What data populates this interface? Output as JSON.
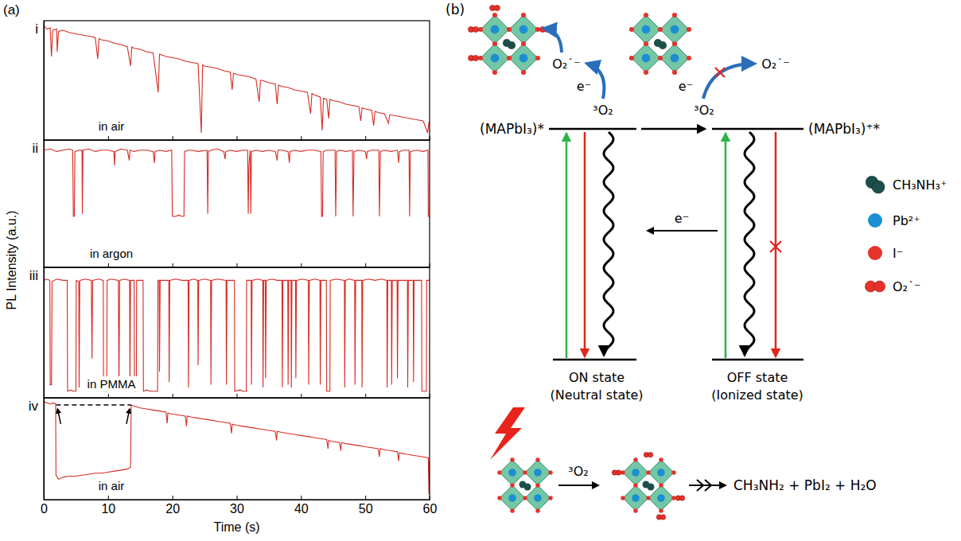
{
  "chart_data": [
    {
      "type": "line",
      "title": "i",
      "annotation": "in air",
      "color": "#d62b24",
      "x": [
        0,
        0.5,
        1,
        1.2,
        1.4,
        2,
        2.1,
        2.3,
        3,
        4,
        5,
        6,
        7,
        8,
        8.4,
        8.6,
        9,
        10,
        11,
        12,
        13,
        13.5,
        13.7,
        14,
        15,
        16,
        17,
        17.8,
        18,
        19,
        20,
        21,
        22,
        23,
        24,
        24.5,
        24.7,
        25,
        26,
        27,
        28,
        29,
        29.3,
        29.5,
        30,
        31,
        32,
        33,
        33.5,
        33.7,
        34,
        35,
        36,
        36.3,
        36.5,
        37,
        38,
        39,
        40,
        41,
        41.5,
        41.7,
        42,
        43,
        43.3,
        43.5,
        44,
        44.3,
        44.5,
        45,
        46,
        47,
        48,
        49,
        49.3,
        49.5,
        50,
        51,
        51.3,
        51.5,
        52,
        53,
        53.6,
        53.8,
        54,
        55,
        56,
        57,
        58,
        59,
        59.7,
        59.9,
        60
      ],
      "values": [
        96,
        93,
        94,
        70,
        92,
        93,
        74,
        91,
        92,
        90,
        89,
        88,
        87,
        86,
        68,
        85,
        84,
        83,
        81,
        80,
        78,
        62,
        78,
        77,
        76,
        74,
        73,
        40,
        72,
        70,
        69,
        68,
        66,
        65,
        64,
        6,
        63,
        62,
        61,
        60,
        58,
        57,
        42,
        56,
        55,
        54,
        53,
        51,
        32,
        50,
        50,
        48,
        47,
        30,
        46,
        45,
        44,
        42,
        41,
        40,
        22,
        39,
        38,
        36,
        8,
        35,
        34,
        18,
        34,
        33,
        32,
        30,
        29,
        28,
        16,
        27,
        26,
        25,
        12,
        24,
        23,
        22,
        14,
        21,
        21,
        20,
        19,
        18,
        17,
        16,
        6,
        15,
        15
      ],
      "xlim": [
        0,
        60
      ],
      "ylim": [
        0,
        100
      ],
      "xticks": [
        0,
        10,
        20,
        30,
        40,
        50,
        60
      ],
      "yticks": [],
      "tick_labels": false
    },
    {
      "type": "line",
      "title": "ii",
      "annotation": "in argon",
      "color": "#d62b24",
      "x": [
        0,
        1,
        2,
        3,
        4,
        4.5,
        4.6,
        4.75,
        4.85,
        5.5,
        5.95,
        6.0,
        6.1,
        7,
        8,
        9,
        10,
        10.9,
        11.0,
        11.1,
        12,
        13,
        13.3,
        13.4,
        14,
        15,
        16,
        17,
        17.2,
        17.3,
        18,
        19,
        19.9,
        20.0,
        20.5,
        21,
        21.5,
        21.8,
        21.9,
        22.5,
        23,
        24,
        25.4,
        25.5,
        25.6,
        26,
        27,
        28,
        28.2,
        28.3,
        29,
        30,
        31,
        31.7,
        31.8,
        31.9,
        32.1,
        32.2,
        32.3,
        33,
        34,
        35,
        36,
        36.3,
        36.4,
        37,
        38,
        38.2,
        38.3,
        39,
        40,
        41,
        42,
        43.1,
        43.2,
        43.35,
        43.45,
        44,
        45.3,
        45.4,
        45.55,
        46,
        47,
        48.0,
        48.1,
        48.25,
        49,
        50,
        50.2,
        50.3,
        51,
        52.1,
        52.2,
        52.35,
        53,
        54,
        55,
        55.2,
        55.3,
        56,
        56.8,
        56.9,
        57.0,
        58,
        59,
        59.75,
        59.8,
        59.9,
        60
      ],
      "values": [
        92,
        93,
        91,
        92,
        93,
        92,
        40,
        40,
        91,
        92,
        92,
        42,
        92,
        93,
        91,
        92,
        92,
        91,
        80,
        91,
        93,
        92,
        84,
        92,
        91,
        92,
        92,
        91,
        82,
        91,
        92,
        91,
        92,
        40,
        40,
        41,
        40,
        40,
        91,
        92,
        92,
        91,
        92,
        42,
        91,
        92,
        93,
        91,
        85,
        91,
        92,
        91,
        92,
        92,
        42,
        80,
        92,
        42,
        91,
        92,
        91,
        92,
        91,
        84,
        92,
        92,
        91,
        82,
        91,
        92,
        91,
        92,
        92,
        91,
        40,
        40,
        91,
        92,
        92,
        40,
        91,
        92,
        91,
        92,
        40,
        91,
        92,
        91,
        85,
        91,
        92,
        92,
        40,
        91,
        92,
        91,
        92,
        82,
        91,
        92,
        92,
        40,
        91,
        92,
        91,
        92,
        40,
        40,
        40
      ],
      "xlim": [
        0,
        60
      ],
      "ylim": [
        0,
        100
      ],
      "xticks": [
        0,
        10,
        20,
        30,
        40,
        50,
        60
      ],
      "yticks": [],
      "tick_labels": false
    },
    {
      "type": "line",
      "title": "iii",
      "annotation": "in PMMA",
      "color": "#d62b24",
      "x": [
        0,
        0.5,
        0.95,
        1.0,
        1.2,
        1.3,
        2,
        3,
        3.65,
        3.7,
        4.2,
        4.6,
        5.0,
        5.05,
        5.45,
        5.5,
        5.6,
        6.5,
        7.4,
        7.5,
        7.6,
        8.5,
        9.25,
        9.3,
        9.8,
        9.85,
        10.5,
        11.6,
        11.7,
        11.8,
        12.5,
        13.35,
        13.4,
        13.5,
        14.05,
        14.1,
        14.4,
        14.45,
        15.45,
        15.5,
        16,
        16.5,
        17,
        17.7,
        17.75,
        17.95,
        18.0,
        18.1,
        19.45,
        19.5,
        19.6,
        20.5,
        21.5,
        22.45,
        22.5,
        22.6,
        23.3,
        23.95,
        24.0,
        24.1,
        25,
        25.95,
        26.0,
        26.1,
        27,
        28.35,
        28.4,
        28.5,
        29.65,
        29.7,
        30.5,
        31,
        31.5,
        31.55,
        32.25,
        32.3,
        32.4,
        33.3,
        34.05,
        34.1,
        34.2,
        34.45,
        34.5,
        34.6,
        35.5,
        36.3,
        37.05,
        37.1,
        37.2,
        37.95,
        38.0,
        38.1,
        38.45,
        38.5,
        38.6,
        39.15,
        39.2,
        39.3,
        40.2,
        41.15,
        41.2,
        41.3,
        42.2,
        42.95,
        43.0,
        43.1,
        43.95,
        44.0,
        44.5,
        44.55,
        45.5,
        46.75,
        46.8,
        46.9,
        47.5,
        48.35,
        48.4,
        48.5,
        49.45,
        49.5,
        49.6,
        50.5,
        51.5,
        52.5,
        53.35,
        53.4,
        53.5,
        54.05,
        54.1,
        54.2,
        54.95,
        55.0,
        55.1,
        56.55,
        56.6,
        56.7,
        57.45,
        57.5,
        57.6,
        58.75,
        58.8,
        59.5,
        59.55,
        60
      ],
      "values": [
        90,
        91,
        90,
        10,
        10,
        89,
        91,
        90,
        90,
        5,
        6,
        5,
        5,
        90,
        89,
        8,
        90,
        91,
        90,
        30,
        90,
        91,
        90,
        5,
        5,
        90,
        91,
        90,
        8,
        90,
        91,
        90,
        6,
        90,
        90,
        5,
        5,
        90,
        90,
        5,
        6,
        5,
        5,
        5,
        90,
        90,
        20,
        90,
        90,
        12,
        90,
        91,
        90,
        90,
        8,
        90,
        91,
        90,
        25,
        90,
        91,
        90,
        10,
        90,
        91,
        90,
        10,
        90,
        90,
        5,
        6,
        5,
        5,
        90,
        90,
        10,
        90,
        91,
        90,
        8,
        90,
        90,
        15,
        90,
        91,
        90,
        90,
        8,
        90,
        90,
        10,
        90,
        90,
        8,
        90,
        90,
        15,
        90,
        91,
        90,
        10,
        90,
        91,
        90,
        10,
        90,
        90,
        5,
        5,
        90,
        91,
        90,
        8,
        90,
        91,
        90,
        10,
        90,
        90,
        8,
        90,
        91,
        90,
        91,
        90,
        8,
        90,
        90,
        10,
        90,
        90,
        15,
        90,
        90,
        8,
        90,
        90,
        12,
        90,
        90,
        5,
        5,
        90,
        90
      ],
      "xlim": [
        0,
        60
      ],
      "ylim": [
        0,
        100
      ],
      "xticks": [
        0,
        10,
        20,
        30,
        40,
        50,
        60
      ],
      "yticks": [],
      "tick_labels": false
    },
    {
      "type": "line",
      "title": "iv",
      "annotation": "in air",
      "xlabel": "Time (s)",
      "color": "#d62b24",
      "x": [
        0,
        0.5,
        1,
        1.5,
        1.85,
        1.9,
        2.3,
        3,
        4,
        5,
        6,
        7,
        8,
        9,
        10,
        11,
        12,
        13,
        13.5,
        13.6,
        14,
        15,
        16,
        17,
        18,
        19,
        19.2,
        19.3,
        20,
        21,
        22,
        22.2,
        22.3,
        23,
        24,
        25,
        26,
        27,
        28,
        29,
        29.2,
        29.3,
        30,
        31,
        32,
        33,
        34,
        35,
        36,
        36.2,
        36.3,
        37,
        38,
        39,
        40,
        41,
        42,
        43,
        44,
        44.2,
        44.3,
        45,
        46,
        46.2,
        46.3,
        47,
        48,
        49,
        50,
        51,
        52,
        52.2,
        52.3,
        53,
        54,
        55,
        55.2,
        55.3,
        56,
        57,
        58,
        59,
        59.8,
        59.9,
        60
      ],
      "values": [
        96,
        95,
        94,
        95,
        94,
        24,
        20,
        22,
        23,
        23,
        24,
        25,
        26,
        26,
        27,
        28,
        29,
        30,
        32,
        93,
        92,
        90,
        89,
        88,
        87,
        86,
        75,
        85,
        84,
        83,
        82,
        72,
        82,
        81,
        80,
        79,
        78,
        77,
        76,
        75,
        65,
        74,
        73,
        72,
        71,
        70,
        69,
        68,
        67,
        58,
        67,
        66,
        65,
        64,
        63,
        62,
        61,
        60,
        59,
        50,
        58,
        57,
        56,
        48,
        56,
        55,
        54,
        53,
        52,
        51,
        50,
        42,
        50,
        49,
        48,
        47,
        38,
        46,
        45,
        44,
        43,
        42,
        41,
        5,
        38
      ],
      "reference_line": {
        "x": [
          1.9,
          13.6
        ],
        "y": 93
      },
      "xlim": [
        0,
        60
      ],
      "ylim": [
        0,
        100
      ],
      "xticks": [
        0,
        10,
        20,
        30,
        40,
        50,
        60
      ],
      "yticks": [],
      "tick_labels": "x"
    }
  ],
  "panel_a": {
    "label": "(a)",
    "ylabel": "PL Intensity (a.u.)"
  },
  "diagram": {
    "label": "(b)",
    "neutral": {
      "superoxide": "O₂˙⁻",
      "electron": "e⁻",
      "oxygen": "³O₂",
      "excited": "(MAPbI₃)*",
      "state": "ON state",
      "state_note": "(Neutral state)"
    },
    "ionized": {
      "superoxide": "O₂˙⁻",
      "electron": "e⁻",
      "oxygen": "³O₂",
      "excited": "(MAPbI₃)⁺*",
      "state": "OFF state",
      "state_note": "(Ionized state)"
    },
    "back_transfer": "e⁻",
    "legend": [
      {
        "label": "CH₃NH₃⁺",
        "color": "#1d4f4a"
      },
      {
        "label": "Pb²⁺",
        "color": "#1b8fd2"
      },
      {
        "label": "I⁻",
        "color": "#e5322b"
      },
      {
        "label": "O₂˙⁻",
        "color": "#e5322b"
      }
    ],
    "degradation": {
      "oxygen": "³O₂",
      "products": "CH₃NH₂ + PbI₂ + H₂O"
    }
  }
}
